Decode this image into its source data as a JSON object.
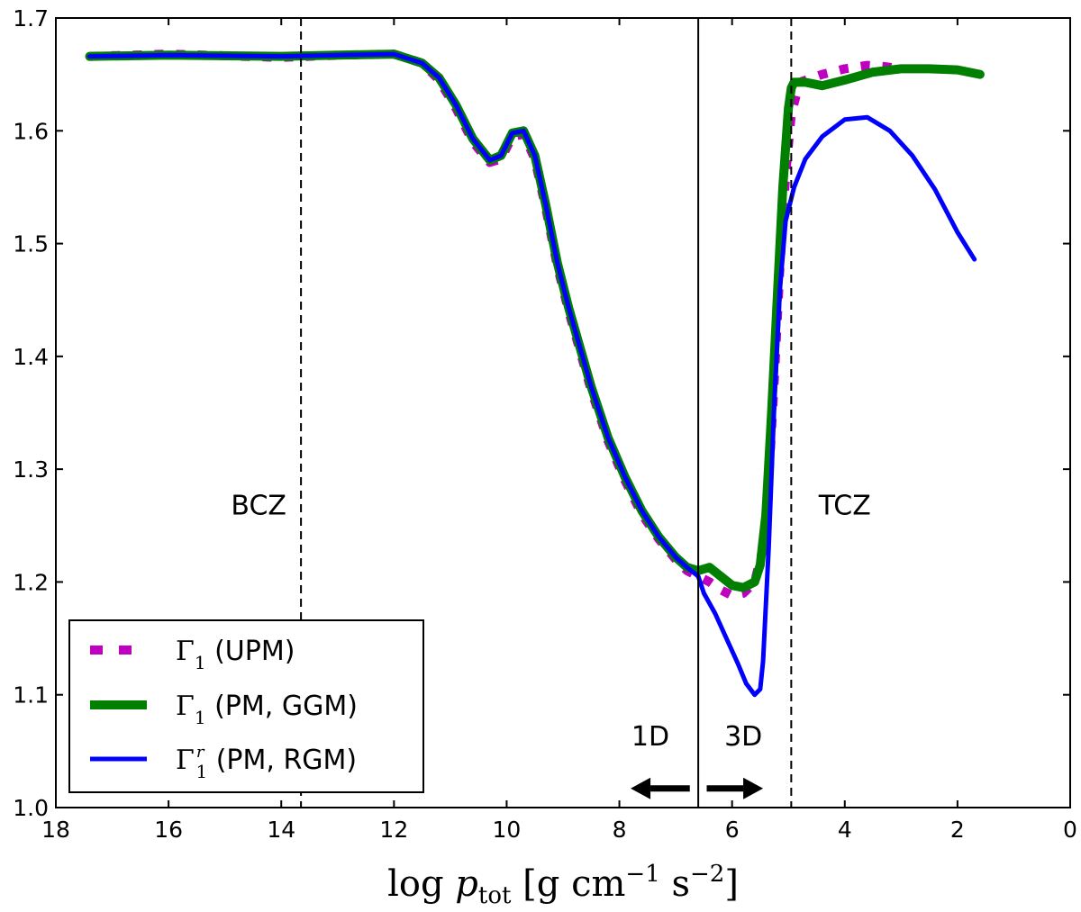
{
  "chart_data": {
    "type": "line",
    "title": "",
    "xlabel": "log p_tot [g cm^-1 s^-2]",
    "xlabel_parts": {
      "prefix": "log ",
      "var": "p",
      "sub": "tot",
      "units_open": " [g cm",
      "exp1": "−1",
      "mid": " s",
      "exp2": "−2",
      "units_close": "]"
    },
    "ylabel": "",
    "xlim": [
      18,
      0
    ],
    "ylim": [
      1.0,
      1.7
    ],
    "x_ticks": [
      18,
      16,
      14,
      12,
      10,
      8,
      6,
      4,
      2,
      0
    ],
    "y_ticks": [
      1.0,
      1.1,
      1.2,
      1.3,
      1.4,
      1.5,
      1.6,
      1.7
    ],
    "x_tick_labels": [
      "18",
      "16",
      "14",
      "12",
      "10",
      "8",
      "6",
      "4",
      "2",
      "0"
    ],
    "y_tick_labels": [
      "1.0",
      "1.1",
      "1.2",
      "1.3",
      "1.4",
      "1.5",
      "1.6",
      "1.7"
    ],
    "grid": false,
    "legend_position": "bottom-left",
    "series": [
      {
        "name": "Γ1 (UPM)",
        "symbol": "Γ",
        "sub": "1",
        "sup": "",
        "label_text": "(UPM)",
        "color": "#bf00bf",
        "style": "dashed",
        "width": "thick",
        "x": [
          17.4,
          16.0,
          14.0,
          13.0,
          12.0,
          11.5,
          11.2,
          10.9,
          10.6,
          10.3,
          10.1,
          9.9,
          9.7,
          9.5,
          9.3,
          9.1,
          8.9,
          8.7,
          8.5,
          8.2,
          7.9,
          7.6,
          7.3,
          7.0,
          6.8,
          6.6,
          6.4,
          6.2,
          6.0,
          5.8,
          5.6,
          5.45,
          5.35,
          5.25,
          5.15,
          5.05,
          4.95,
          4.8,
          4.4,
          4.0,
          3.6,
          3.3,
          3.0
        ],
        "y": [
          1.666,
          1.668,
          1.665,
          1.667,
          1.668,
          1.66,
          1.645,
          1.62,
          1.59,
          1.572,
          1.575,
          1.595,
          1.597,
          1.575,
          1.53,
          1.48,
          1.44,
          1.405,
          1.37,
          1.325,
          1.29,
          1.26,
          1.238,
          1.22,
          1.21,
          1.205,
          1.2,
          1.193,
          1.188,
          1.19,
          1.2,
          1.23,
          1.29,
          1.38,
          1.48,
          1.56,
          1.615,
          1.643,
          1.65,
          1.655,
          1.658,
          1.657,
          1.655
        ]
      },
      {
        "name": "Γ1 (PM, GGM)",
        "symbol": "Γ",
        "sub": "1",
        "sup": "",
        "label_text": "(PM, GGM)",
        "color": "#007f00",
        "style": "solid",
        "width": "thick",
        "x": [
          17.4,
          16.0,
          14.0,
          13.0,
          12.0,
          11.5,
          11.2,
          10.9,
          10.6,
          10.3,
          10.1,
          9.9,
          9.7,
          9.5,
          9.3,
          9.1,
          8.9,
          8.7,
          8.5,
          8.2,
          7.9,
          7.6,
          7.3,
          7.0,
          6.8,
          6.6,
          6.4,
          6.2,
          6.0,
          5.8,
          5.6,
          5.5,
          5.4,
          5.3,
          5.2,
          5.1,
          5.0,
          4.95,
          4.9,
          4.7,
          4.4,
          4.0,
          3.5,
          3.0,
          2.5,
          2.0,
          1.6
        ],
        "y": [
          1.666,
          1.667,
          1.666,
          1.667,
          1.668,
          1.66,
          1.647,
          1.623,
          1.593,
          1.574,
          1.578,
          1.598,
          1.6,
          1.578,
          1.533,
          1.483,
          1.443,
          1.408,
          1.373,
          1.328,
          1.293,
          1.263,
          1.24,
          1.222,
          1.213,
          1.21,
          1.213,
          1.205,
          1.197,
          1.195,
          1.2,
          1.215,
          1.26,
          1.35,
          1.45,
          1.55,
          1.62,
          1.638,
          1.643,
          1.643,
          1.64,
          1.645,
          1.652,
          1.655,
          1.655,
          1.654,
          1.65
        ]
      },
      {
        "name": "Γ1r (PM, RGM)",
        "symbol": "Γ",
        "sub": "1",
        "sup": "r",
        "label_text": "(PM, RGM)",
        "color": "#0000ff",
        "style": "solid",
        "width": "medium",
        "x": [
          17.4,
          16.0,
          14.0,
          13.0,
          12.0,
          11.5,
          11.2,
          10.9,
          10.6,
          10.3,
          10.1,
          9.9,
          9.7,
          9.5,
          9.3,
          9.1,
          8.9,
          8.7,
          8.5,
          8.2,
          7.9,
          7.6,
          7.3,
          7.0,
          6.8,
          6.6,
          6.5,
          6.3,
          6.1,
          5.9,
          5.75,
          5.6,
          5.5,
          5.45,
          5.35,
          5.25,
          5.15,
          5.05,
          4.9,
          4.7,
          4.4,
          4.0,
          3.6,
          3.2,
          2.8,
          2.4,
          2.0,
          1.7
        ],
        "y": [
          1.666,
          1.667,
          1.666,
          1.667,
          1.668,
          1.66,
          1.647,
          1.623,
          1.593,
          1.574,
          1.578,
          1.598,
          1.6,
          1.578,
          1.533,
          1.483,
          1.443,
          1.408,
          1.373,
          1.328,
          1.293,
          1.263,
          1.24,
          1.222,
          1.213,
          1.205,
          1.19,
          1.172,
          1.15,
          1.128,
          1.11,
          1.1,
          1.105,
          1.13,
          1.23,
          1.36,
          1.46,
          1.52,
          1.55,
          1.575,
          1.595,
          1.61,
          1.612,
          1.6,
          1.578,
          1.548,
          1.51,
          1.486
        ]
      }
    ],
    "vlines": [
      {
        "x": 13.65,
        "style": "dashed",
        "label": "BCZ",
        "label_x": 14.4,
        "label_y": 1.26
      },
      {
        "x": 6.6,
        "style": "solid"
      },
      {
        "x": 4.95,
        "style": "dashed",
        "label": "TCZ",
        "label_x": 4.0,
        "label_y": 1.26
      }
    ],
    "annotations": [
      {
        "text": "1D",
        "x": 7.45,
        "y": 1.055
      },
      {
        "text": "3D",
        "x": 5.8,
        "y": 1.055
      }
    ],
    "arrows": [
      {
        "direction": "left",
        "from_x": 6.75,
        "to_x": 7.8,
        "y": 1.017
      },
      {
        "direction": "right",
        "from_x": 6.45,
        "to_x": 5.45,
        "y": 1.017
      }
    ]
  }
}
